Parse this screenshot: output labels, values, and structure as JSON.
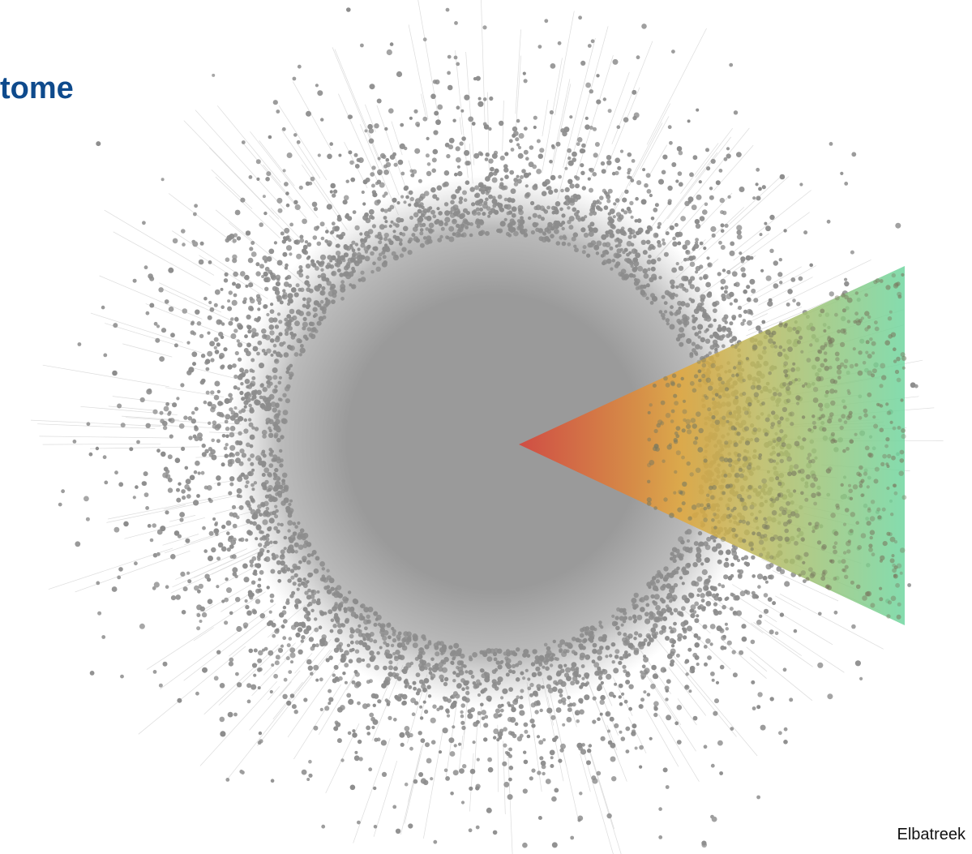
{
  "title": "tome",
  "credit": "Elbatreek",
  "colors": {
    "title": "#0e4a8c",
    "node": "#8c8c8c",
    "core": "#9a9a9a",
    "edge": "#dcdcdc",
    "wedge_start": "#d94035",
    "wedge_mid": "#e3a83a",
    "wedge_end": "#6fd6a0"
  },
  "figure": {
    "type": "network-graph",
    "has_dense_core": true,
    "wedge_gradient": [
      "wedge_start",
      "wedge_mid",
      "wedge_end"
    ]
  }
}
